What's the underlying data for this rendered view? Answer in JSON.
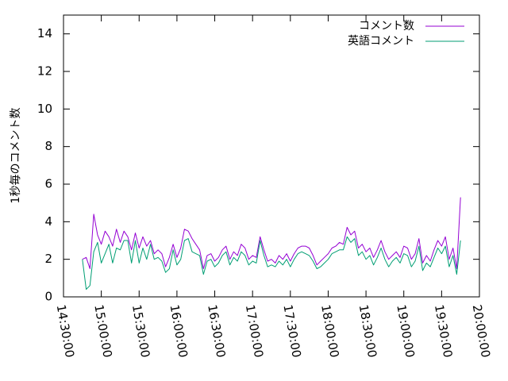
{
  "chart_data": {
    "type": "line",
    "ylabel": "1秒毎のコメント数",
    "xlabel": "",
    "title": "",
    "ylim": [
      0,
      15
    ],
    "xlim": [
      "14:30:00",
      "20:00:00"
    ],
    "x_ticks": [
      "14:30:00",
      "15:00:00",
      "15:30:00",
      "16:00:00",
      "16:30:00",
      "17:00:00",
      "17:30:00",
      "18:00:00",
      "18:30:00",
      "19:00:00",
      "19:30:00",
      "20:00:00"
    ],
    "y_ticks": [
      0,
      2,
      4,
      6,
      8,
      10,
      12,
      14
    ],
    "legend_position": "top-right",
    "series": [
      {
        "name": "コメント数",
        "color": "#9400d3",
        "x": [
          "14:45:00",
          "14:48:00",
          "14:51:00",
          "14:54:00",
          "14:57:00",
          "15:00:00",
          "15:03:00",
          "15:06:00",
          "15:09:00",
          "15:12:00",
          "15:15:00",
          "15:18:00",
          "15:21:00",
          "15:24:00",
          "15:27:00",
          "15:30:00",
          "15:33:00",
          "15:36:00",
          "15:39:00",
          "15:42:00",
          "15:45:00",
          "15:48:00",
          "15:51:00",
          "15:54:00",
          "15:57:00",
          "16:00:00",
          "16:03:00",
          "16:06:00",
          "16:09:00",
          "16:12:00",
          "16:15:00",
          "16:18:00",
          "16:21:00",
          "16:24:00",
          "16:27:00",
          "16:30:00",
          "16:33:00",
          "16:36:00",
          "16:39:00",
          "16:42:00",
          "16:45:00",
          "16:48:00",
          "16:51:00",
          "16:54:00",
          "16:57:00",
          "17:00:00",
          "17:03:00",
          "17:06:00",
          "17:09:00",
          "17:12:00",
          "17:15:00",
          "17:18:00",
          "17:21:00",
          "17:24:00",
          "17:27:00",
          "17:30:00",
          "17:33:00",
          "17:36:00",
          "17:39:00",
          "17:42:00",
          "17:45:00",
          "17:48:00",
          "17:51:00",
          "17:54:00",
          "17:57:00",
          "18:00:00",
          "18:03:00",
          "18:06:00",
          "18:09:00",
          "18:12:00",
          "18:15:00",
          "18:18:00",
          "18:21:00",
          "18:24:00",
          "18:27:00",
          "18:30:00",
          "18:33:00",
          "18:36:00",
          "18:39:00",
          "18:42:00",
          "18:45:00",
          "18:48:00",
          "18:51:00",
          "18:54:00",
          "18:57:00",
          "19:00:00",
          "19:03:00",
          "19:06:00",
          "19:09:00",
          "19:12:00",
          "19:15:00",
          "19:18:00",
          "19:21:00",
          "19:24:00",
          "19:27:00",
          "19:30:00",
          "19:33:00",
          "19:36:00",
          "19:39:00",
          "19:42:00",
          "19:45:00"
        ],
        "values": [
          2.0,
          2.1,
          1.5,
          4.4,
          3.3,
          2.8,
          3.5,
          3.2,
          2.7,
          3.6,
          2.9,
          3.5,
          3.2,
          2.5,
          3.4,
          2.6,
          3.2,
          2.7,
          3.0,
          2.3,
          2.5,
          2.3,
          1.6,
          2.1,
          2.8,
          2.1,
          2.6,
          3.6,
          3.5,
          3.1,
          2.8,
          2.5,
          1.5,
          2.2,
          2.3,
          1.9,
          2.1,
          2.5,
          2.7,
          2.0,
          2.4,
          2.2,
          2.8,
          2.6,
          2.0,
          2.2,
          2.1,
          3.2,
          2.5,
          1.9,
          2.0,
          1.8,
          2.2,
          2.0,
          2.3,
          1.9,
          2.3,
          2.6,
          2.7,
          2.7,
          2.6,
          2.2,
          1.7,
          1.9,
          2.1,
          2.3,
          2.6,
          2.7,
          2.9,
          2.8,
          3.7,
          3.3,
          3.5,
          2.6,
          2.8,
          2.4,
          2.6,
          2.1,
          2.5,
          3.0,
          2.4,
          2.0,
          2.2,
          2.4,
          2.1,
          2.7,
          2.6,
          2.0,
          2.3,
          3.1,
          1.8,
          2.2,
          1.9,
          2.5,
          3.0,
          2.7,
          3.2,
          2.0,
          2.6,
          1.5,
          5.3
        ]
      },
      {
        "name": "英語コメント",
        "color": "#009e73",
        "x": [
          "14:45:00",
          "14:48:00",
          "14:51:00",
          "14:54:00",
          "14:57:00",
          "15:00:00",
          "15:03:00",
          "15:06:00",
          "15:09:00",
          "15:12:00",
          "15:15:00",
          "15:18:00",
          "15:21:00",
          "15:24:00",
          "15:27:00",
          "15:30:00",
          "15:33:00",
          "15:36:00",
          "15:39:00",
          "15:42:00",
          "15:45:00",
          "15:48:00",
          "15:51:00",
          "15:54:00",
          "15:57:00",
          "16:00:00",
          "16:03:00",
          "16:06:00",
          "16:09:00",
          "16:12:00",
          "16:15:00",
          "16:18:00",
          "16:21:00",
          "16:24:00",
          "16:27:00",
          "16:30:00",
          "16:33:00",
          "16:36:00",
          "16:39:00",
          "16:42:00",
          "16:45:00",
          "16:48:00",
          "16:51:00",
          "16:54:00",
          "16:57:00",
          "17:00:00",
          "17:03:00",
          "17:06:00",
          "17:09:00",
          "17:12:00",
          "17:15:00",
          "17:18:00",
          "17:21:00",
          "17:24:00",
          "17:27:00",
          "17:30:00",
          "17:33:00",
          "17:36:00",
          "17:39:00",
          "17:42:00",
          "17:45:00",
          "17:48:00",
          "17:51:00",
          "17:54:00",
          "17:57:00",
          "18:00:00",
          "18:03:00",
          "18:06:00",
          "18:09:00",
          "18:12:00",
          "18:15:00",
          "18:18:00",
          "18:21:00",
          "18:24:00",
          "18:27:00",
          "18:30:00",
          "18:33:00",
          "18:36:00",
          "18:39:00",
          "18:42:00",
          "18:45:00",
          "18:48:00",
          "18:51:00",
          "18:54:00",
          "18:57:00",
          "19:00:00",
          "19:03:00",
          "19:06:00",
          "19:09:00",
          "19:12:00",
          "19:15:00",
          "19:18:00",
          "19:21:00",
          "19:24:00",
          "19:27:00",
          "19:30:00",
          "19:33:00",
          "19:36:00",
          "19:39:00",
          "19:42:00",
          "19:45:00"
        ],
        "values": [
          2.0,
          0.4,
          0.6,
          2.4,
          2.9,
          1.8,
          2.3,
          2.8,
          1.8,
          2.6,
          2.5,
          3.0,
          3.0,
          1.8,
          3.0,
          1.8,
          2.6,
          2.0,
          2.8,
          2.0,
          2.1,
          1.9,
          1.3,
          1.5,
          2.5,
          1.7,
          2.0,
          3.0,
          3.1,
          2.4,
          2.3,
          2.2,
          1.2,
          1.9,
          2.0,
          1.6,
          1.8,
          2.2,
          2.4,
          1.7,
          2.1,
          1.9,
          2.4,
          2.2,
          1.7,
          1.9,
          1.8,
          3.0,
          2.2,
          1.6,
          1.7,
          1.6,
          1.9,
          1.7,
          2.0,
          1.6,
          2.0,
          2.3,
          2.4,
          2.3,
          2.2,
          1.9,
          1.5,
          1.6,
          1.8,
          2.0,
          2.3,
          2.4,
          2.5,
          2.5,
          3.2,
          2.9,
          3.1,
          2.2,
          2.4,
          2.0,
          2.2,
          1.7,
          2.1,
          2.6,
          2.0,
          1.6,
          1.9,
          2.1,
          1.8,
          2.3,
          2.2,
          1.6,
          1.9,
          2.7,
          1.4,
          1.8,
          1.6,
          2.1,
          2.6,
          2.3,
          2.7,
          1.6,
          2.2,
          1.2,
          3.0
        ]
      }
    ]
  }
}
